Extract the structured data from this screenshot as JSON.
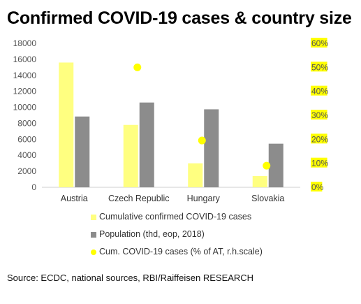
{
  "title": "Confirmed COVID-19 cases & country size",
  "source": "Source: ECDC, national sources, RBI/Raiffeisen RESEARCH",
  "chart_data": {
    "type": "bar",
    "title": "Confirmed COVID-19 cases & country size",
    "categories": [
      "Austria",
      "Czech Republic",
      "Hungary",
      "Slovakia"
    ],
    "series": [
      {
        "name": "Cumulative confirmed COVID-19 cases",
        "type": "bar",
        "axis": "left",
        "color": "#ffff80",
        "values": [
          15600,
          7800,
          3000,
          1400
        ]
      },
      {
        "name": "Population (thd, eop, 2018)",
        "type": "bar",
        "axis": "left",
        "color": "#8c8c8c",
        "values": [
          8850,
          10600,
          9750,
          5450
        ]
      },
      {
        "name": "Cum. COVID-19 cases (% of AT, r.h.scale)",
        "type": "scatter",
        "axis": "right",
        "color": "#ffff00",
        "values": [
          null,
          50,
          19.5,
          9
        ]
      }
    ],
    "y_left": {
      "ylim": [
        0,
        18000
      ],
      "ticks": [
        "0",
        "2000",
        "4000",
        "6000",
        "8000",
        "10000",
        "12000",
        "14000",
        "16000",
        "18000"
      ]
    },
    "y_right": {
      "ylim": [
        0,
        60
      ],
      "ticks": [
        "0%",
        "10%",
        "20%",
        "30%",
        "40%",
        "50%",
        "60%"
      ]
    },
    "grid": false,
    "legend": "bottom"
  }
}
